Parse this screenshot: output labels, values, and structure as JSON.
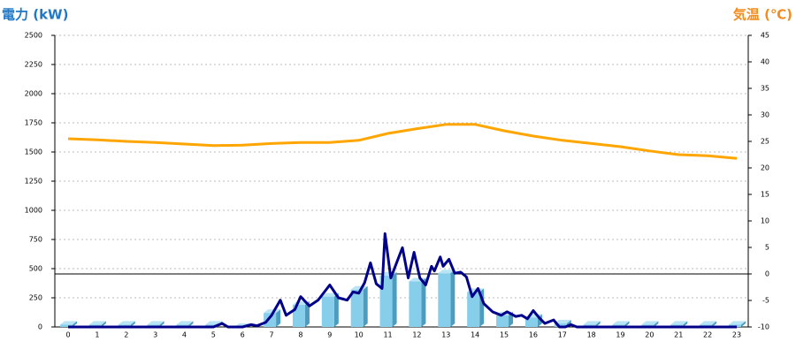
{
  "chart_data": {
    "type": "combo",
    "ylabel": "電力 (kW)",
    "y2label": "気温 (℃)",
    "categories": [
      "0",
      "1",
      "2",
      "3",
      "4",
      "5",
      "6",
      "7",
      "8",
      "9",
      "10",
      "11",
      "12",
      "13",
      "14",
      "15",
      "16",
      "17",
      "18",
      "19",
      "20",
      "21",
      "22",
      "23"
    ],
    "ylim": [
      0,
      2500
    ],
    "yticks": [
      0,
      250,
      500,
      750,
      1000,
      1250,
      1500,
      1750,
      2000,
      2250,
      2500
    ],
    "y2lim": [
      -10,
      45
    ],
    "y2ticks": [
      -10,
      -5,
      0,
      5,
      10,
      15,
      20,
      25,
      30,
      35,
      40,
      45
    ],
    "y2_refline": 0,
    "grid": true,
    "series": [
      {
        "type": "bar",
        "color": "#87ceeb",
        "values": [
          20,
          20,
          20,
          20,
          20,
          20,
          0,
          120,
          190,
          260,
          320,
          440,
          390,
          460,
          300,
          100,
          80,
          30,
          20,
          20,
          20,
          20,
          20,
          20
        ]
      },
      {
        "type": "line",
        "axis": "y2",
        "color": "#ffa500",
        "values": [
          25.5,
          25.3,
          25,
          24.8,
          24.5,
          24.2,
          24.3,
          24.6,
          24.8,
          24.8,
          25.2,
          26.5,
          27.4,
          28.2,
          28.2,
          27,
          26,
          25.2,
          24.6,
          24,
          23.2,
          22.5,
          22.3,
          21.8
        ]
      },
      {
        "type": "line",
        "color": "#00008b",
        "x": [
          0,
          5,
          5.3,
          5.5,
          6,
          6.3,
          6.5,
          6.8,
          7,
          7.3,
          7.5,
          7.8,
          8,
          8.3,
          8.6,
          9,
          9.3,
          9.6,
          9.8,
          10,
          10.2,
          10.4,
          10.6,
          10.8,
          10.9,
          11.1,
          11.3,
          11.5,
          11.7,
          11.9,
          12.1,
          12.3,
          12.5,
          12.6,
          12.8,
          12.9,
          13.1,
          13.3,
          13.5,
          13.7,
          13.9,
          14.1,
          14.3,
          14.6,
          14.9,
          15.1,
          15.4,
          15.6,
          15.8,
          16,
          16.2,
          16.4,
          16.7,
          16.9,
          17.1,
          17.3,
          17.5,
          23
        ],
        "values": [
          0,
          0,
          30,
          0,
          0,
          20,
          10,
          40,
          100,
          230,
          100,
          150,
          260,
          180,
          230,
          360,
          250,
          230,
          300,
          290,
          380,
          550,
          370,
          330,
          800,
          420,
          550,
          680,
          420,
          640,
          420,
          360,
          520,
          480,
          600,
          520,
          580,
          460,
          470,
          430,
          260,
          330,
          200,
          130,
          100,
          130,
          90,
          100,
          70,
          140,
          80,
          30,
          60,
          0,
          0,
          20,
          0,
          0
        ]
      }
    ]
  }
}
